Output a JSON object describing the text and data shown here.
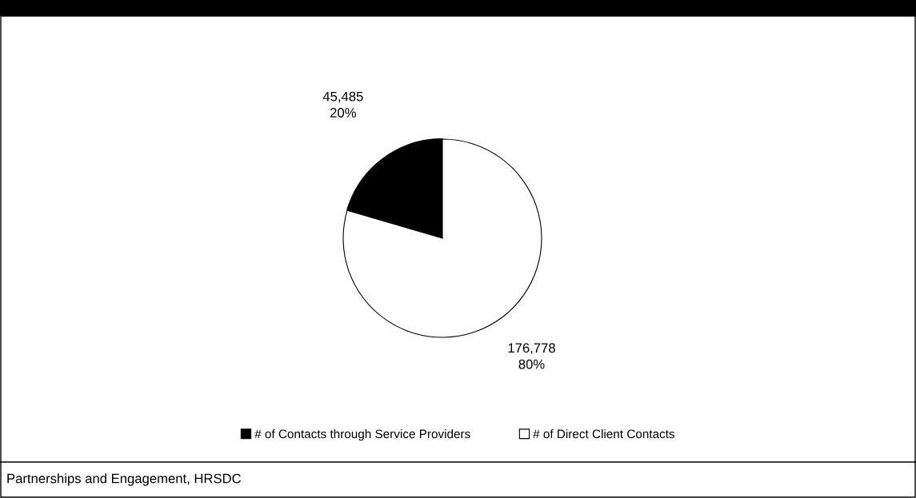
{
  "chart_data": {
    "type": "pie",
    "categories": [
      "# of Contacts through Service Providers",
      "# of Direct Client Contacts"
    ],
    "values": [
      45485,
      176778
    ],
    "colors": [
      "#000000",
      "#ffffff"
    ],
    "value_labels": [
      "45,485\n20%",
      "176,778\n80%"
    ],
    "legend": "bottom",
    "annotations": [
      "Partnerships and Engagement, HRSDC"
    ]
  }
}
